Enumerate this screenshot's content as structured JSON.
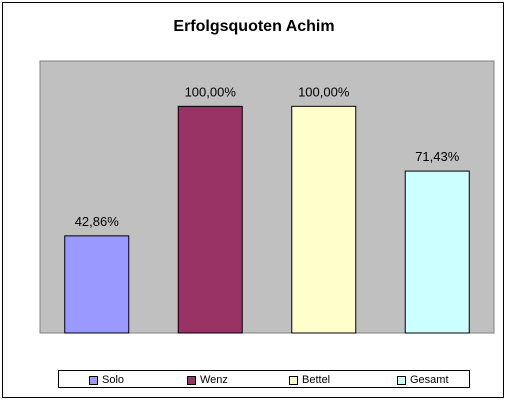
{
  "chart_data": {
    "type": "bar",
    "title": "Erfolgsquoten Achim",
    "categories": [
      "Solo",
      "Wenz",
      "Bettel",
      "Gesamt"
    ],
    "values": [
      42.86,
      100.0,
      100.0,
      71.43
    ],
    "value_labels": [
      "42,86%",
      "100,00%",
      "100,00%",
      "71,43%"
    ],
    "colors": [
      "#9999ff",
      "#993366",
      "#ffffcc",
      "#ccffff"
    ],
    "plot_background": "#c0c0c0",
    "ylim": [
      0,
      120
    ],
    "grid": false,
    "legend_position": "bottom"
  }
}
